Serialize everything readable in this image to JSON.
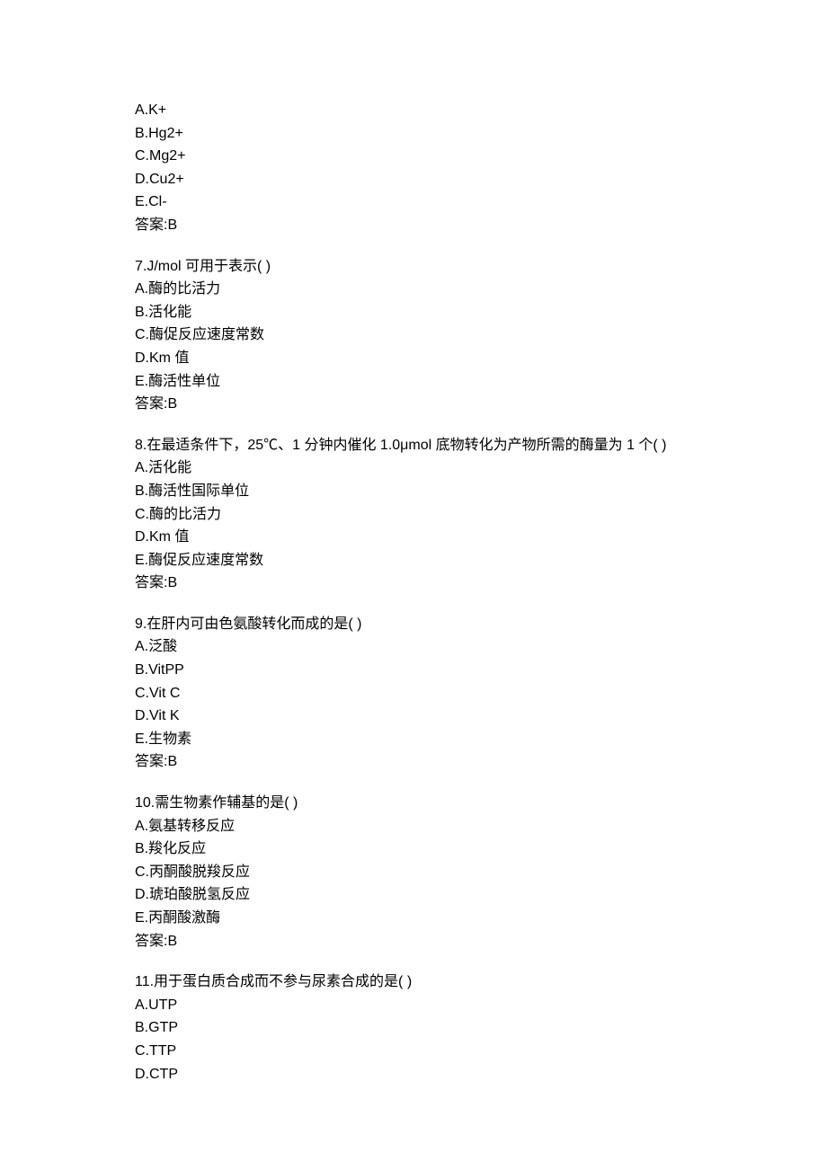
{
  "block0": {
    "options": [
      "A.K+",
      "B.Hg2+",
      "C.Mg2+",
      "D.Cu2+",
      "E.Cl-"
    ],
    "answer": "答案:B"
  },
  "questions": [
    {
      "text": "7.J/mol 可用于表示( )",
      "options": [
        "A.酶的比活力",
        "B.活化能",
        "C.酶促反应速度常数",
        "D.Km 值",
        "E.酶活性单位"
      ],
      "answer": "答案:B"
    },
    {
      "text": "8.在最适条件下，25℃、1 分钟内催化 1.0μmol 底物转化为产物所需的酶量为 1 个( )",
      "options": [
        "A.活化能",
        "B.酶活性国际单位",
        "C.酶的比活力",
        "D.Km 值",
        "E.酶促反应速度常数"
      ],
      "answer": "答案:B"
    },
    {
      "text": "9.在肝内可由色氨酸转化而成的是( )",
      "options": [
        "A.泛酸",
        "B.VitPP",
        "C.Vit C",
        "D.Vit K",
        "E.生物素"
      ],
      "answer": "答案:B"
    },
    {
      "text": "10.需生物素作辅基的是( )",
      "options": [
        "A.氨基转移反应",
        "B.羧化反应",
        "C.丙酮酸脱羧反应",
        "D.琥珀酸脱氢反应",
        "E.丙酮酸激酶"
      ],
      "answer": "答案:B"
    },
    {
      "text": "11.用于蛋白质合成而不参与尿素合成的是( )",
      "options": [
        "A.UTP",
        "B.GTP",
        "C.TTP",
        "D.CTP"
      ],
      "answer": ""
    }
  ]
}
